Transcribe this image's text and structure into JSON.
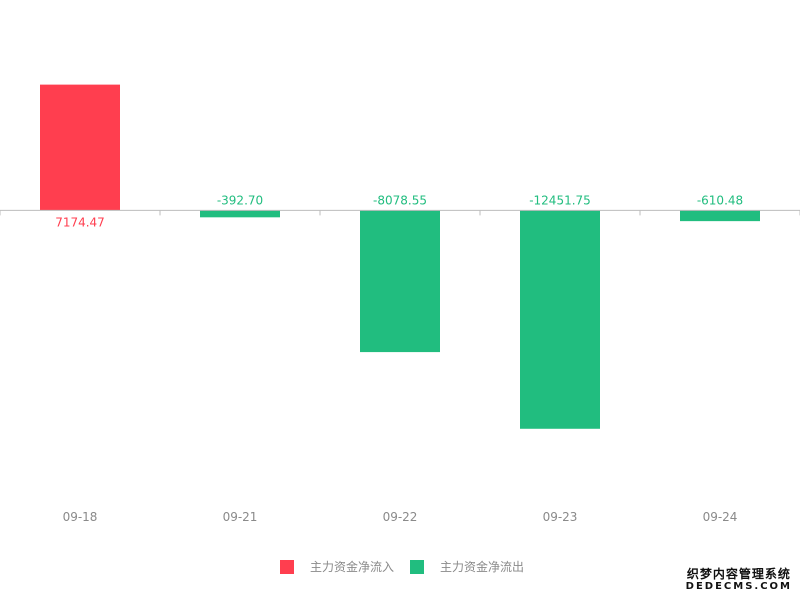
{
  "chart_data": {
    "type": "bar",
    "categories": [
      "09-18",
      "09-21",
      "09-22",
      "09-23",
      "09-24"
    ],
    "values": [
      7174.47,
      -392.7,
      -8078.55,
      -12451.75,
      -610.48
    ],
    "value_labels": [
      "7174.47",
      "-392.70",
      "-8078.55",
      "-12451.75",
      "-610.48"
    ],
    "title": "",
    "xlabel": "",
    "ylabel": "",
    "ylim": [
      -16000,
      12000
    ],
    "grid": false,
    "legend_position": "bottom",
    "series": [
      {
        "name": "主力资金净流入",
        "color": "#ff3e4f"
      },
      {
        "name": "主力资金净流出",
        "color": "#21bd7f"
      }
    ]
  },
  "colors": {
    "positive": "#ff3e4f",
    "negative": "#21bd7f",
    "axis": "#bdbdbd",
    "tick_label": "#8a8a8a"
  },
  "watermark": {
    "line1": "织梦内容管理系统",
    "line2": "DEDECMS.COM"
  }
}
